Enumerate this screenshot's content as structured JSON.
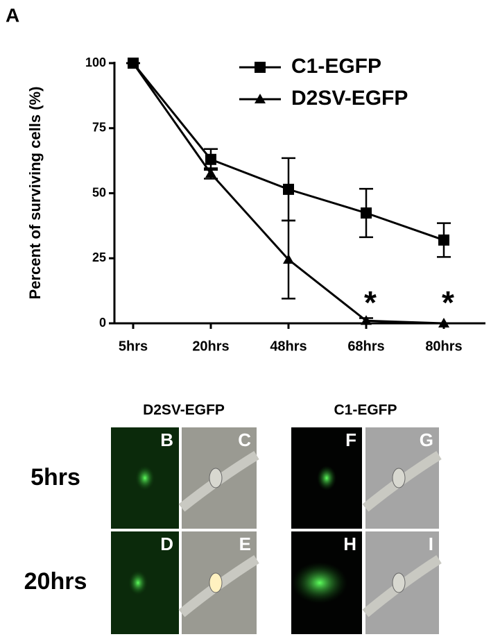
{
  "panel_label": "A",
  "chart_data": {
    "type": "line",
    "y_label": "Percent of surviving cells (%)",
    "categories": [
      "5hrs",
      "20hrs",
      "48hrs",
      "68hrs",
      "80hrs"
    ],
    "series": [
      {
        "name": "C1-EGFP",
        "color": "#000000",
        "marker": "square",
        "values": [
          100,
          63,
          51.5,
          42.4,
          32
        ],
        "errors": [
          0,
          4,
          12,
          9.3,
          6.5
        ]
      },
      {
        "name": "D2SV-EGFP",
        "color": "#000000",
        "marker": "triangle",
        "values": [
          100,
          57.6,
          24.5,
          1,
          0
        ],
        "errors": [
          0,
          2,
          15,
          1,
          0
        ]
      }
    ],
    "ylim": [
      0,
      100
    ],
    "yticks": [
      0,
      25,
      50,
      75,
      100
    ],
    "legend": "upper right",
    "annotations": [
      {
        "text": "*",
        "category": "68hrs"
      },
      {
        "text": "*",
        "category": "80hrs"
      }
    ]
  },
  "micrographs": {
    "columns": [
      "D2SV-EGFP",
      "C1-EGFP"
    ],
    "rows": [
      "5hrs",
      "20hrs"
    ],
    "panels": [
      "B",
      "C",
      "F",
      "G",
      "D",
      "E",
      "H",
      "I"
    ]
  }
}
